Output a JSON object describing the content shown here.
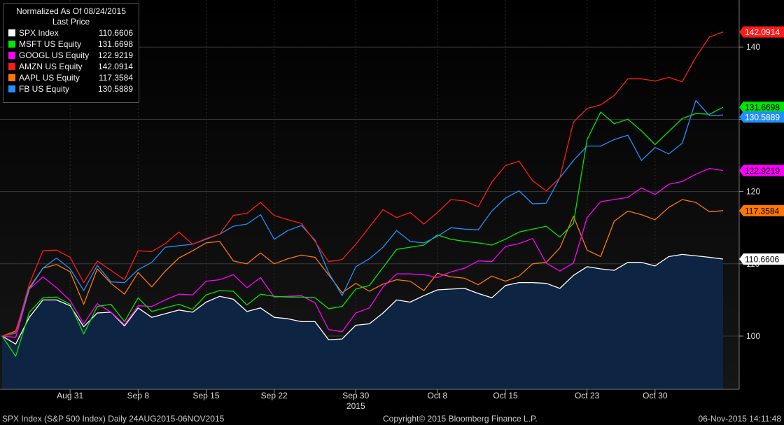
{
  "legend": {
    "title": "Normalized As Of 08/24/2015",
    "subtitle": "Last Price"
  },
  "footer": {
    "left": "SPX Index (S&P 500 Index)  Daily 24AUG2015-06NOV2015",
    "center": "Copyright© 2015 Bloomberg Finance L.P.",
    "right": "06-Nov-2015 14:11:48"
  },
  "chart_data": {
    "type": "line",
    "x": [
      "08/24",
      "08/25",
      "08/26",
      "08/27",
      "08/28",
      "08/31",
      "09/01",
      "09/02",
      "09/03",
      "09/04",
      "09/08",
      "09/09",
      "09/10",
      "09/11",
      "09/14",
      "09/15",
      "09/16",
      "09/17",
      "09/18",
      "09/21",
      "09/22",
      "09/23",
      "09/24",
      "09/25",
      "09/28",
      "09/29",
      "09/30",
      "10/01",
      "10/02",
      "10/05",
      "10/06",
      "10/07",
      "10/08",
      "10/09",
      "10/12",
      "10/13",
      "10/14",
      "10/15",
      "10/16",
      "10/19",
      "10/20",
      "10/21",
      "10/22",
      "10/23",
      "10/26",
      "10/27",
      "10/28",
      "10/29",
      "10/30",
      "11/02",
      "11/03",
      "11/04",
      "11/05",
      "11/06"
    ],
    "x_ticks": [
      {
        "label": "Aug 31",
        "index": 5
      },
      {
        "label": "Sep 8",
        "index": 10
      },
      {
        "label": "Sep 15",
        "index": 15
      },
      {
        "label": "Sep 22",
        "index": 20
      },
      {
        "label": "Sep 30",
        "index": 26
      },
      {
        "label": "Oct 8",
        "index": 32
      },
      {
        "label": "Oct 15",
        "index": 37
      },
      {
        "label": "Oct 23",
        "index": 43
      },
      {
        "label": "Oct 30",
        "index": 48
      }
    ],
    "x_sublabel": {
      "label": "2015",
      "index": 26
    },
    "y_ticks": [
      100,
      110,
      120,
      130,
      140
    ],
    "ylim": [
      94.3,
      147
    ],
    "grid": true,
    "legend_position": "top-left",
    "area_series": "SPX Index",
    "series": [
      {
        "name": "SPX Index",
        "last": "110.6606",
        "color": "#ffffff",
        "label_text": "#000000",
        "values": [
          100,
          98.9,
          102.6,
          105,
          105,
          104.2,
          101.3,
          103.2,
          103.3,
          101.4,
          103.9,
          102.6,
          103.1,
          103.6,
          103.3,
          104.7,
          105.5,
          105.1,
          103.4,
          103.9,
          102.6,
          102.4,
          102.0,
          102.0,
          99.5,
          99.6,
          101.5,
          101.7,
          103.2,
          105,
          104.7,
          105.6,
          106.4,
          106.5,
          106.6,
          105.9,
          105.3,
          107,
          107.4,
          107.4,
          107.3,
          106.6,
          108.4,
          109.6,
          109.3,
          109.1,
          110.2,
          110.2,
          109.7,
          111,
          111.3,
          111.1,
          110.9,
          110.66
        ]
      },
      {
        "name": "MSFT US Equity",
        "last": "131.6698",
        "color": "#00e600",
        "label_text": "#000000",
        "values": [
          100,
          97.2,
          103.3,
          105.3,
          105.4,
          104.4,
          100.3,
          104.1,
          104.4,
          102,
          105.3,
          103.4,
          103.9,
          104.4,
          103.7,
          105.7,
          106.3,
          106.2,
          104.3,
          105.8,
          105.5,
          105.4,
          105.4,
          105.3,
          103.8,
          104.1,
          106.5,
          107,
          109.5,
          112,
          112.3,
          112.6,
          114,
          113.4,
          113.1,
          112.9,
          112.6,
          113.4,
          114.4,
          114.8,
          115.2,
          113.7,
          115.6,
          127.2,
          131,
          129.4,
          130,
          128.4,
          126.5,
          128.3,
          130.1,
          130.8,
          130.7,
          131.67
        ]
      },
      {
        "name": "GOOGL US Equity",
        "last": "122.9219",
        "color": "#ff00ff",
        "label_text": "#000000",
        "values": [
          100,
          99.8,
          106.5,
          108.2,
          106.7,
          104.9,
          101.7,
          104.5,
          103.3,
          101.6,
          104.2,
          104.1,
          105,
          105.8,
          105.7,
          107.6,
          107.8,
          108.5,
          106.7,
          108.1,
          105.4,
          105.5,
          105.6,
          104.6,
          100.9,
          100.6,
          103.2,
          103.9,
          106.8,
          108.6,
          108.6,
          108.5,
          108.1,
          108.9,
          109.4,
          110.4,
          110.3,
          112.4,
          112.8,
          113.5,
          110.1,
          109,
          110.1,
          116.4,
          118.6,
          118.9,
          119.2,
          120.5,
          119.6,
          121,
          121.4,
          122.4,
          123.2,
          122.92
        ]
      },
      {
        "name": "AMZN US Equity",
        "last": "142.0914",
        "color": "#ff1a1a",
        "label_text": "#ffffff",
        "values": [
          100,
          100.5,
          107.2,
          111.8,
          111.9,
          110.9,
          107.4,
          110.4,
          109.1,
          107.8,
          111.8,
          111.7,
          112.8,
          114.4,
          112.7,
          113.5,
          114.1,
          116.7,
          117,
          118.5,
          116.7,
          116.1,
          115.6,
          113.1,
          110.3,
          110.6,
          112.7,
          115.1,
          117.5,
          116.4,
          117.1,
          115.5,
          117.1,
          118.9,
          118.7,
          117.9,
          121.3,
          123.6,
          124.2,
          121.5,
          120.1,
          121.9,
          129.6,
          131.5,
          132,
          133.3,
          135.6,
          135.6,
          135.3,
          135.8,
          135.2,
          138.6,
          141.4,
          142.09
        ]
      },
      {
        "name": "AAPL US Equity",
        "last": "117.3584",
        "color": "#ff7700",
        "label_text": "#000000",
        "values": [
          100,
          100.7,
          106.7,
          109.4,
          109.9,
          108.9,
          104.4,
          109.3,
          107.3,
          105.8,
          108.8,
          106.8,
          109,
          110.8,
          111.8,
          112.9,
          113.1,
          110.4,
          110,
          111.5,
          110,
          110.7,
          111.2,
          110.9,
          108.5,
          106,
          107.3,
          106.2,
          107.2,
          107.8,
          107.6,
          106.3,
          108.7,
          108.2,
          108,
          107.1,
          108.3,
          107.6,
          108.3,
          110,
          110.2,
          112.2,
          116.6,
          111.9,
          111,
          115.9,
          117.3,
          116.8,
          116.1,
          117.8,
          118.9,
          118.5,
          117.2,
          117.36
        ]
      },
      {
        "name": "FB US Equity",
        "last": "130.5889",
        "color": "#1e90ff",
        "label_text": "#ffffff",
        "values": [
          100,
          100.4,
          106.5,
          109.4,
          110.8,
          109.3,
          106.3,
          109.8,
          107.5,
          107.4,
          109.2,
          110.2,
          112.3,
          112.5,
          112.7,
          113.4,
          114.1,
          115.2,
          115.5,
          116.8,
          113.4,
          114.6,
          115.3,
          113.3,
          108.8,
          105.6,
          109.6,
          110.7,
          112.3,
          114.6,
          113.1,
          112.9,
          113.8,
          115,
          114.8,
          114.7,
          117.3,
          119.1,
          120.1,
          118.3,
          118.4,
          121.9,
          124.3,
          126.3,
          126.3,
          127.2,
          127.8,
          124.3,
          126.1,
          125.2,
          126.7,
          132.6,
          130.5,
          130.59
        ]
      }
    ]
  }
}
